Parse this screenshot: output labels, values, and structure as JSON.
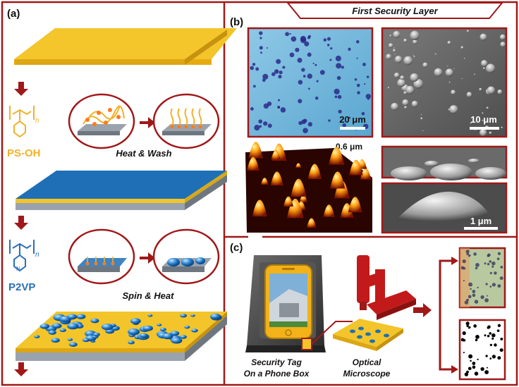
{
  "panels": {
    "a": {
      "label": "(a)"
    },
    "b": {
      "label": "(b)",
      "title": "First Security Layer"
    },
    "c": {
      "label": "(c)"
    }
  },
  "polymers": {
    "ps_oh": {
      "name": "PS-OH",
      "subscript": "n",
      "step": "Heat & Wash",
      "color": "#f2b12a"
    },
    "p2vp": {
      "name": "P2VP",
      "subscript": "n",
      "step": "Spin & Heat",
      "color": "#2a6fb8"
    }
  },
  "micrographs": {
    "optical_scale": "20 μm",
    "sem_scale": "10 μm",
    "afm_height": "0.6 μm",
    "sem_zoom_scale": "1 μm"
  },
  "security": {
    "tag_line1": "Security Tag",
    "tag_line2": "On a Phone Box",
    "microscope_line1": "Optical",
    "microscope_line2": "Microscope"
  },
  "colors": {
    "frame": "#a01818",
    "gold": "#f3c52a",
    "blue": "#1f6fb6",
    "gray": "#9aa3ad"
  }
}
